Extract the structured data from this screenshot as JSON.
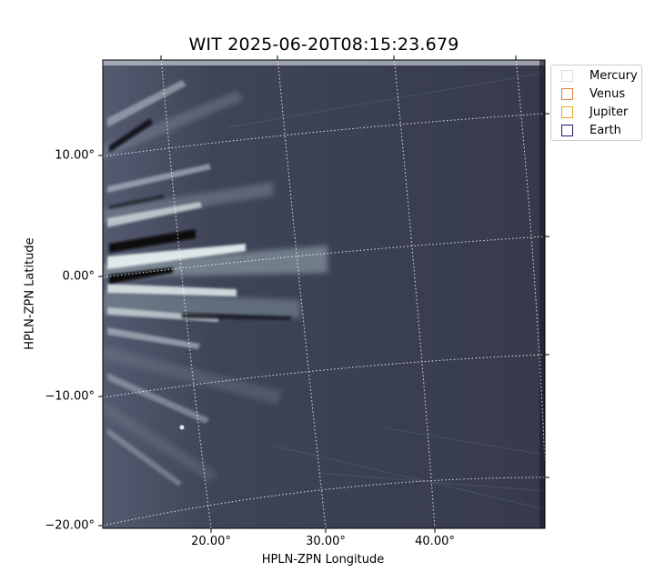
{
  "title": "WIT 2025-06-20T08:15:23.679",
  "axes": {
    "xlabel": "HPLN-ZPN Longitude",
    "ylabel": "HPLN-ZPN Latitude",
    "xticks": [
      "20.00°",
      "30.00°",
      "40.00°"
    ],
    "yticks": [
      "10.00°",
      "0.00°",
      "−10.00°",
      "−20.00°"
    ]
  },
  "legend": [
    {
      "label": "Mercury",
      "color": "#dddddd"
    },
    {
      "label": "Venus",
      "color": "#e07b39"
    },
    {
      "label": "Jupiter",
      "color": "#e0a820"
    },
    {
      "label": "Earth",
      "color": "#1a1a6e"
    }
  ],
  "colors": {
    "background": "#3a3f52",
    "streamer": "#e6f0f0"
  }
}
